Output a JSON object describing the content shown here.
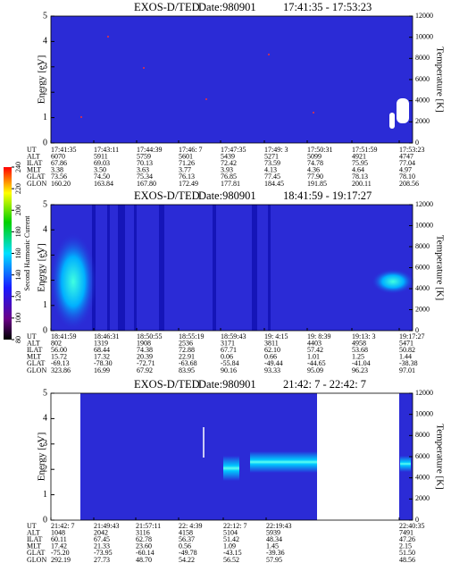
{
  "panels": [
    {
      "title": "EXOS-D/TED",
      "date": "Date:980901",
      "time_range": "17:41:35 - 17:53:23",
      "y_label": "Energy [eV]",
      "y2_label": "Temperature [K]",
      "ylim": [
        0,
        5
      ],
      "yticks": [
        0,
        1,
        2,
        3,
        4,
        5
      ],
      "y2lim": [
        0,
        12000
      ],
      "y2ticks": [
        0,
        2000,
        4000,
        6000,
        8000,
        10000,
        12000
      ],
      "table": {
        "row_labels": [
          "UT",
          "ALT",
          "ILAT",
          "MLT",
          "GLAT",
          "GLON"
        ],
        "rows": [
          [
            "17:41:35",
            "17:43:11",
            "17:44:39",
            "17:46: 7",
            "17:47:35",
            "17:49: 3",
            "17:50:31",
            "17:51:59",
            "17:53:23"
          ],
          [
            "6070",
            "5911",
            "5759",
            "5601",
            "5439",
            "5271",
            "5099",
            "4921",
            "4747"
          ],
          [
            "67.86",
            "69.03",
            "70.13",
            "71.26",
            "72.42",
            "73.59",
            "74.78",
            "75.95",
            "77.04"
          ],
          [
            "3.38",
            "3.50",
            "3.63",
            "3.77",
            "3.93",
            "4.13",
            "4.36",
            "4.64",
            "4.97"
          ],
          [
            "73.56",
            "74.50",
            "75.34",
            "76.13",
            "76.85",
            "77.45",
            "77.90",
            "78.13",
            "78.10"
          ],
          [
            "160.20",
            "163.84",
            "167.80",
            "172.49",
            "177.81",
            "184.45",
            "191.85",
            "200.11",
            "208.56"
          ]
        ]
      }
    },
    {
      "title": "EXOS-D/TED",
      "date": "Date:980901",
      "time_range": "18:41:59 - 19:17:27",
      "y_label": "Energy [eV]",
      "y2_label": "Temperature [K]",
      "ylim": [
        0,
        5
      ],
      "yticks": [
        0,
        1,
        2,
        3,
        4,
        5
      ],
      "y2lim": [
        0,
        12000
      ],
      "y2ticks": [
        0,
        2000,
        4000,
        6000,
        8000,
        10000,
        12000
      ],
      "table": {
        "row_labels": [
          "UT",
          "ALT",
          "ILAT",
          "MLT",
          "GLAT",
          "GLON"
        ],
        "rows": [
          [
            "18:41:59",
            "18:46:31",
            "18:50:55",
            "18:55:19",
            "18:59:43",
            "19: 4:15",
            "19: 8:39",
            "19:13: 3",
            "19:17:27"
          ],
          [
            "802",
            "1319",
            "1908",
            "2536",
            "3171",
            "3811",
            "4403",
            "4958",
            "5471"
          ],
          [
            "56.00",
            "68.44",
            "74.38",
            "72.88",
            "67.71",
            "62.10",
            "57.42",
            "53.68",
            "50.82"
          ],
          [
            "15.72",
            "17.32",
            "20.39",
            "22.91",
            "0.06",
            "0.66",
            "1.01",
            "1.25",
            "1.44"
          ],
          [
            "-69.13",
            "-78.30",
            "-72.71",
            "-63.68",
            "-55.84",
            "-49.44",
            "-44.65",
            "-41.04",
            "-38.38"
          ],
          [
            "323.86",
            "16.99",
            "67.92",
            "83.95",
            "90.16",
            "93.33",
            "95.09",
            "96.23",
            "97.01"
          ]
        ]
      }
    },
    {
      "title": "EXOS-D/TED",
      "date": "Date:980901",
      "time_range": "21:42: 7 - 22:42: 7",
      "y_label": "Energy [eV]",
      "y2_label": "Temperature [K]",
      "ylim": [
        0,
        5
      ],
      "yticks": [
        0,
        1,
        2,
        3,
        4,
        5
      ],
      "y2lim": [
        0,
        12000
      ],
      "y2ticks": [
        0,
        2000,
        4000,
        6000,
        8000,
        10000,
        12000
      ],
      "table": {
        "row_labels": [
          "UT",
          "ALT",
          "ILAT",
          "MLT",
          "GLAT",
          "GLON"
        ],
        "rows": [
          [
            "21:42: 7",
            "21:49:43",
            "21:57:11",
            "22: 4:39",
            "22:12: 7",
            "22:19:43",
            "22:40:35"
          ],
          [
            "1048",
            "2042",
            "3116",
            "4158",
            "5104",
            "5939",
            "7491"
          ],
          [
            "60.11",
            "67.45",
            "62.78",
            "56.37",
            "51.42",
            "48.34",
            "47.26"
          ],
          [
            "17.42",
            "21.33",
            "23.60",
            "0.56",
            "1.09",
            "1.45",
            "2.15"
          ],
          [
            "-75.20",
            "-73.95",
            "-60.14",
            "-49.78",
            "-43.15",
            "-39.36",
            "51.50"
          ],
          [
            "292.19",
            "27.73",
            "48.70",
            "54.22",
            "56.52",
            "57.95",
            "48.56"
          ]
        ]
      }
    }
  ],
  "colorbar": {
    "label": "Second Harmonic Current",
    "lim": [
      80,
      240
    ],
    "ticks": [
      80,
      100,
      120,
      140,
      160,
      180,
      200,
      220,
      240
    ]
  }
}
